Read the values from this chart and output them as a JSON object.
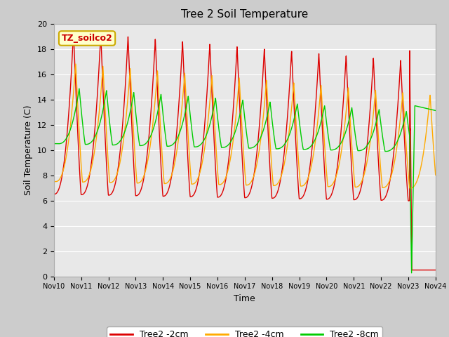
{
  "title": "Tree 2 Soil Temperature",
  "xlabel": "Time",
  "ylabel": "Soil Temperature (C)",
  "xlim": [
    0,
    14
  ],
  "ylim": [
    0,
    20
  ],
  "yticks": [
    0,
    2,
    4,
    6,
    8,
    10,
    12,
    14,
    16,
    18,
    20
  ],
  "xtick_labels": [
    "Nov 10",
    "Nov 11",
    "Nov 12",
    "Nov 13",
    "Nov 14",
    "Nov 15",
    "Nov 16",
    "Nov 17",
    "Nov 18",
    "Nov 19",
    "Nov 20",
    "Nov 21",
    "Nov 22",
    "Nov 23",
    "Nov 24"
  ],
  "xtick_positions": [
    0,
    1,
    2,
    3,
    4,
    5,
    6,
    7,
    8,
    9,
    10,
    11,
    12,
    13,
    14
  ],
  "legend_label": "TZ_soilco2",
  "series_labels": [
    "Tree2 -2cm",
    "Tree2 -4cm",
    "Tree2 -8cm"
  ],
  "series_colors": [
    "#dd0000",
    "#ffaa00",
    "#00cc00"
  ],
  "bg_color": "#dddddd",
  "plot_bg_color": "#e8e8e8",
  "grid_color": "#ffffff",
  "annotation_bg": "#ffffcc",
  "annotation_border": "#ccaa00",
  "linewidth": 1.0
}
